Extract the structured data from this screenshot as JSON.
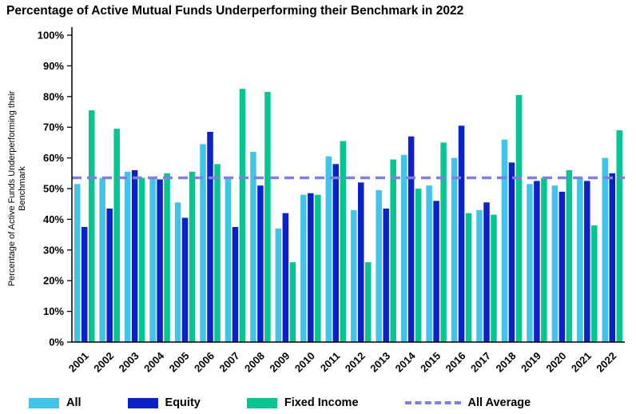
{
  "chart_data": {
    "type": "bar",
    "title": "Percentage of Active Mutual Funds Underperforming their Benchmark in 2022",
    "ylabel_line1": "Percentage of Active Funds Underperforming their",
    "ylabel_line2": "Benchmark",
    "ylim": [
      0,
      100
    ],
    "ytick_step": 10,
    "ytick_suffix": "%",
    "grid": false,
    "legend_position": "bottom",
    "categories": [
      "2001",
      "2002",
      "2003",
      "2004",
      "2005",
      "2006",
      "2007",
      "2008",
      "2009",
      "2010",
      "2011",
      "2012",
      "2013",
      "2014",
      "2015",
      "2016",
      "2017",
      "2018",
      "2019",
      "2020",
      "2021",
      "2022"
    ],
    "series": [
      {
        "name": "All",
        "color": "#41C3EA",
        "values": [
          51.5,
          53.5,
          55.5,
          53.5,
          45.5,
          64.5,
          53.5,
          62,
          37,
          48,
          60.5,
          43,
          49.5,
          61,
          51,
          60,
          43,
          66,
          51.5,
          51,
          53.5,
          60
        ]
      },
      {
        "name": "Equity",
        "color": "#0D21C8",
        "values": [
          37.5,
          43.5,
          56,
          53,
          40.5,
          68.5,
          37.5,
          51,
          42,
          48.5,
          58,
          52,
          43.5,
          67,
          46,
          70.5,
          45.5,
          58.5,
          52.5,
          49,
          52.5,
          55
        ]
      },
      {
        "name": "Fixed Income",
        "color": "#05C690",
        "values": [
          75.5,
          69.5,
          53.5,
          55,
          55.5,
          58,
          82.5,
          81.5,
          26,
          48,
          65.5,
          26,
          59.5,
          50,
          65,
          42,
          41.5,
          80.5,
          53.5,
          56,
          38,
          69
        ]
      }
    ],
    "average_line": {
      "label": "All Average",
      "value": 53.5,
      "color": "#7F7FE0"
    }
  }
}
